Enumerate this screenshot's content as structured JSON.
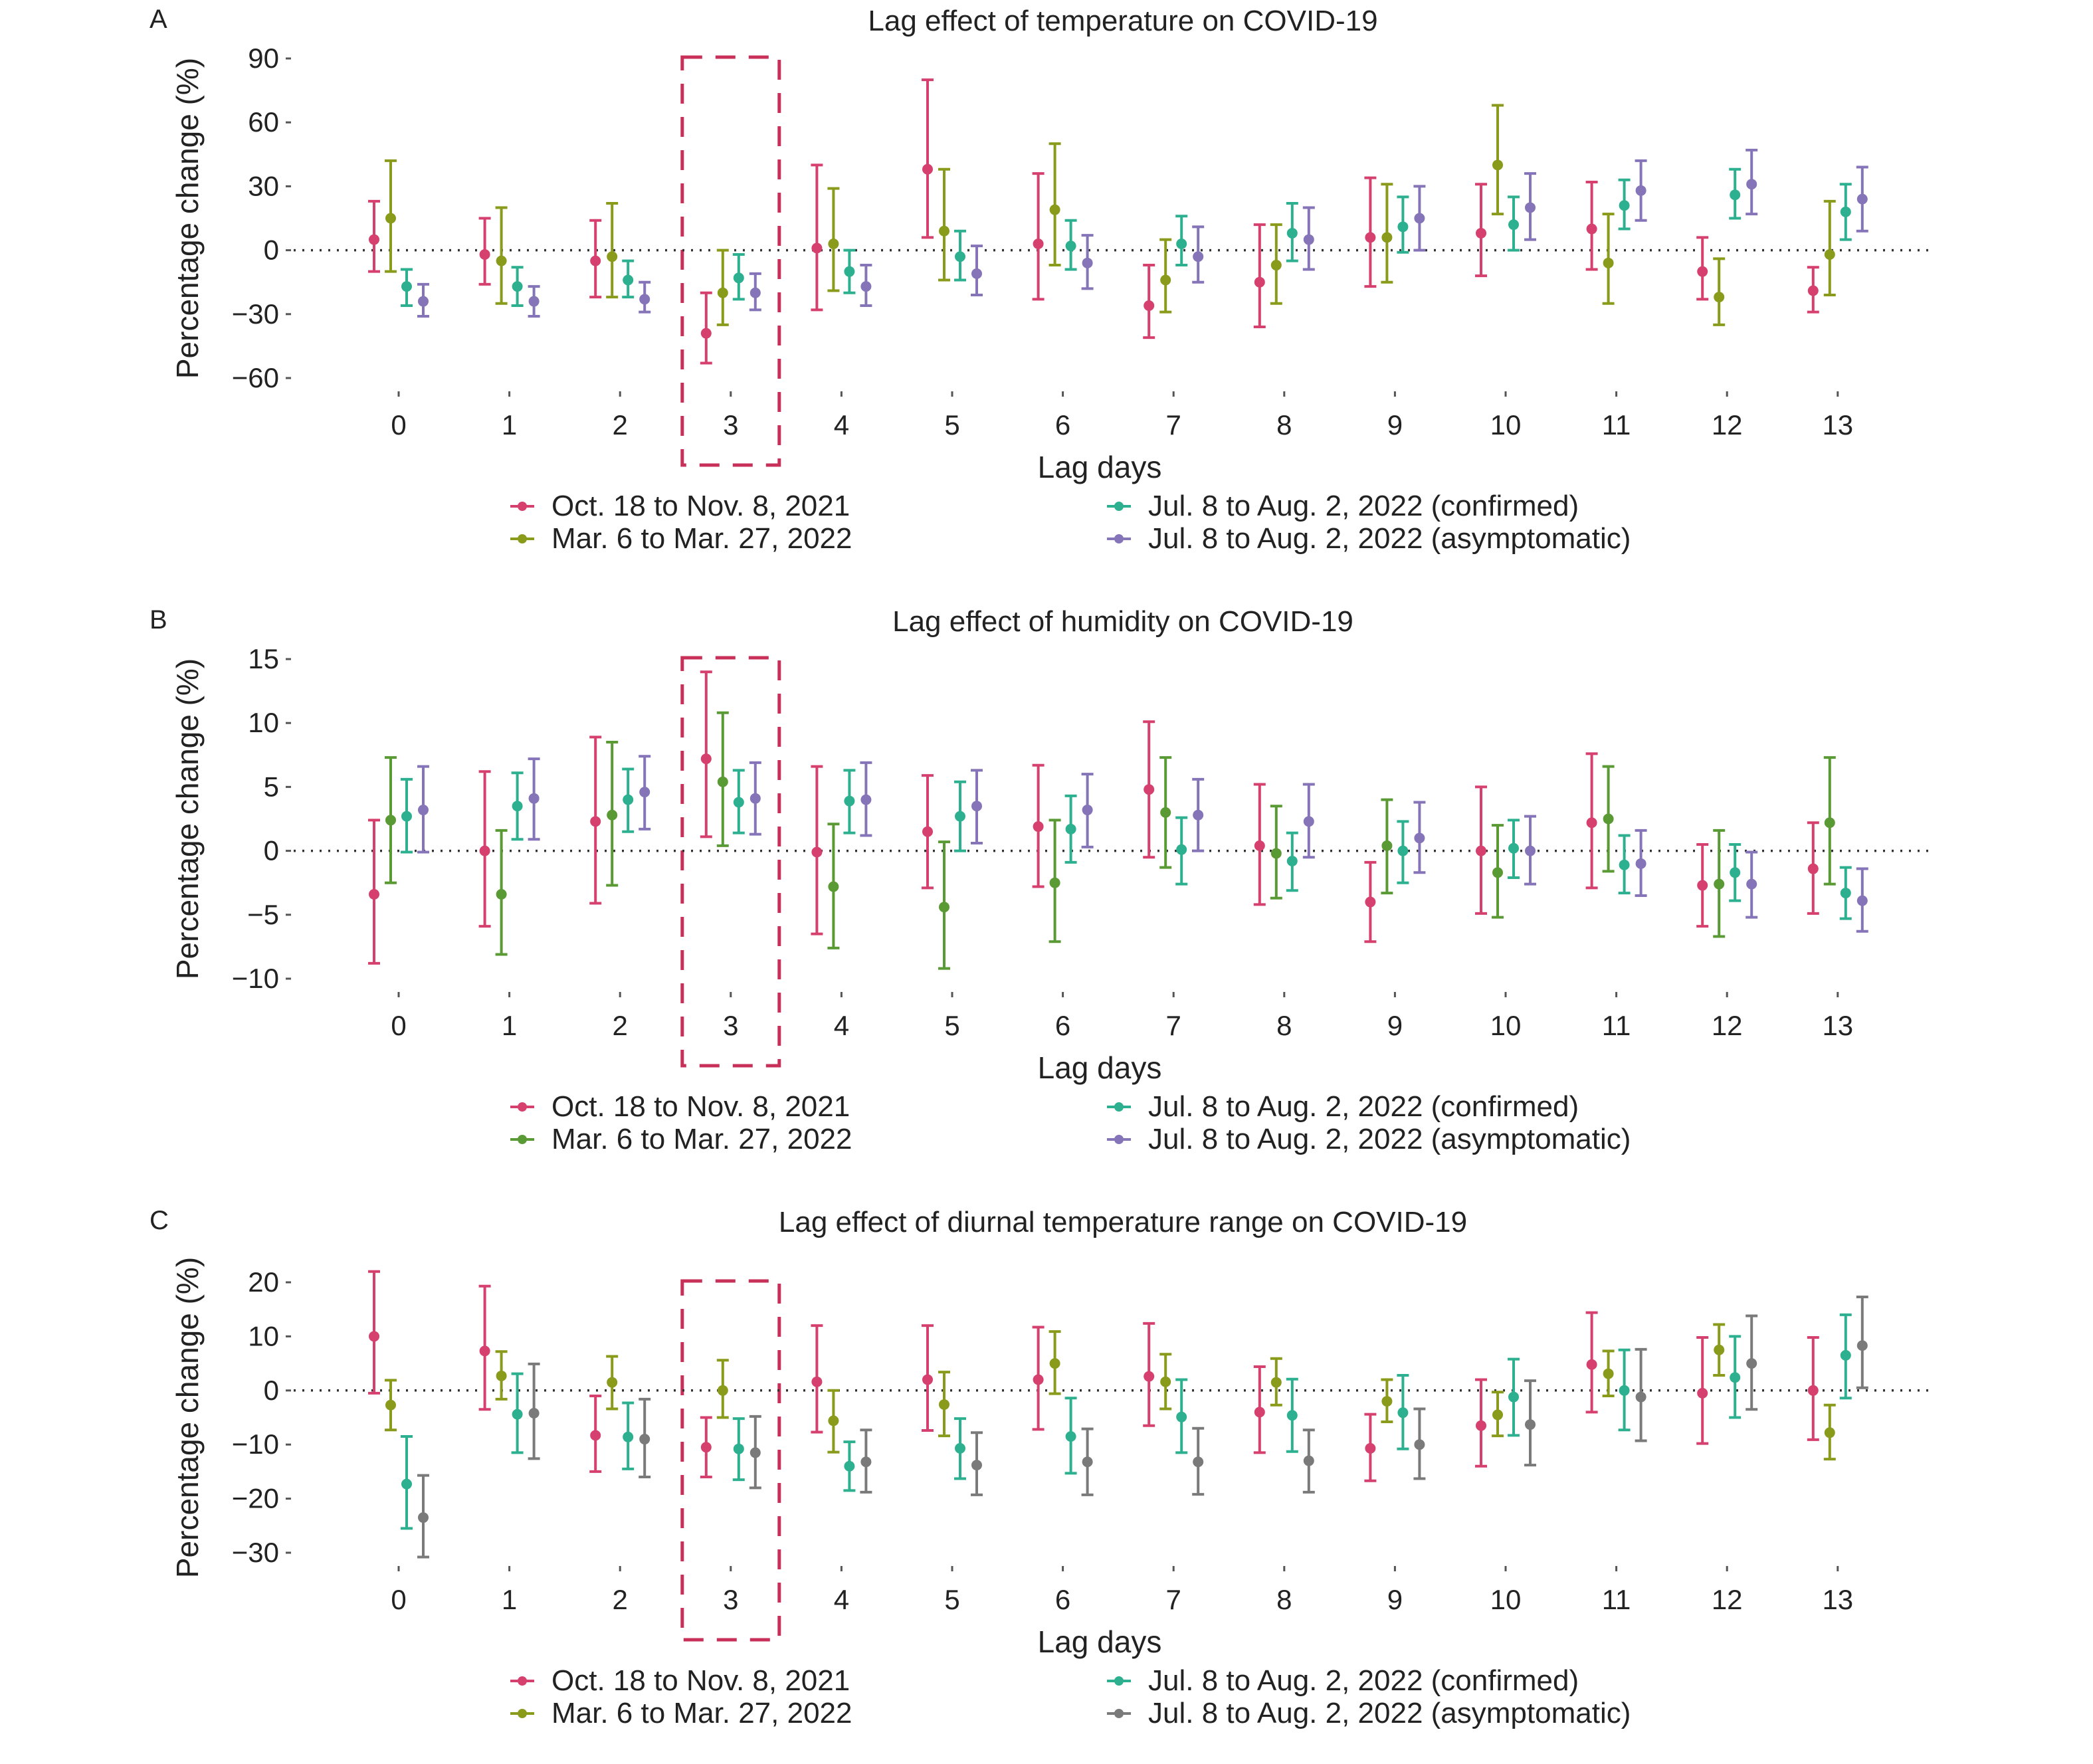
{
  "chart_data": [
    {
      "type": "errorbar",
      "panel": "A",
      "title": "Lag effect of temperature on COVID-19",
      "xlabel": "Lag days",
      "ylabel": "Percentage change (%)",
      "categories": [
        "0",
        "1",
        "2",
        "3",
        "4",
        "5",
        "6",
        "7",
        "8",
        "9",
        "10",
        "11",
        "12",
        "13"
      ],
      "yticks": [
        90,
        60,
        30,
        0,
        -30,
        -60
      ],
      "ylim": [
        -60,
        90
      ],
      "highlight_category": "3",
      "legend_position": "bottom",
      "series": [
        {
          "name": "Oct. 18 to Nov. 8, 2021",
          "color": "#d6406e",
          "values": [
            5,
            -2,
            -5,
            -39,
            1,
            38,
            3,
            -26,
            -15,
            6,
            8,
            10,
            -10,
            -19
          ],
          "lower": [
            -10,
            -16,
            -22,
            -53,
            -28,
            6,
            -23,
            -41,
            -36,
            -17,
            -12,
            -9,
            -23,
            -29
          ],
          "upper": [
            23,
            15,
            14,
            -20,
            40,
            80,
            36,
            -7,
            12,
            34,
            31,
            32,
            6,
            -8
          ]
        },
        {
          "name": "Mar. 6 to Mar. 27, 2022",
          "color": "#8a9a1a",
          "values": [
            15,
            -5,
            -3,
            -20,
            3,
            9,
            19,
            -14,
            -7,
            6,
            40,
            -6,
            -22,
            -2
          ],
          "lower": [
            -10,
            -25,
            -22,
            -35,
            -19,
            -14,
            -7,
            -29,
            -25,
            -15,
            17,
            -25,
            -35,
            -21
          ],
          "upper": [
            42,
            20,
            22,
            0,
            29,
            38,
            50,
            5,
            12,
            31,
            68,
            17,
            -4,
            23
          ]
        },
        {
          "name": "Jul. 8 to Aug. 2, 2022 (confirmed)",
          "color": "#2db08f",
          "values": [
            -17,
            -17,
            -14,
            -13,
            -10,
            -3,
            2,
            3,
            8,
            11,
            12,
            21,
            26,
            18
          ],
          "lower": [
            -26,
            -26,
            -22,
            -23,
            -20,
            -14,
            -9,
            -7,
            -5,
            -1,
            0,
            10,
            15,
            5
          ],
          "upper": [
            -9,
            -8,
            -5,
            -2,
            0,
            9,
            14,
            16,
            22,
            25,
            25,
            33,
            38,
            31
          ]
        },
        {
          "name": "Jul. 8 to Aug. 2, 2022 (asymptomatic)",
          "color": "#8574b8",
          "values": [
            -24,
            -24,
            -23,
            -20,
            -17,
            -11,
            -6,
            -3,
            5,
            15,
            20,
            28,
            31,
            24
          ],
          "lower": [
            -31,
            -31,
            -29,
            -28,
            -26,
            -21,
            -18,
            -15,
            -9,
            0,
            5,
            14,
            17,
            9
          ],
          "upper": [
            -16,
            -17,
            -15,
            -11,
            -7,
            2,
            7,
            11,
            20,
            30,
            36,
            42,
            47,
            39
          ]
        }
      ]
    },
    {
      "type": "errorbar",
      "panel": "B",
      "title": "Lag effect of humidity on COVID-19",
      "xlabel": "Lag days",
      "ylabel": "Percentage change (%)",
      "categories": [
        "0",
        "1",
        "2",
        "3",
        "4",
        "5",
        "6",
        "7",
        "8",
        "9",
        "10",
        "11",
        "12",
        "13"
      ],
      "yticks": [
        15,
        10,
        5,
        0,
        -5,
        -10
      ],
      "ylim": [
        -10,
        15
      ],
      "highlight_category": "3",
      "legend_position": "bottom",
      "series": [
        {
          "name": "Oct. 18 to Nov. 8, 2021",
          "color": "#d6406e",
          "values": [
            -3.4,
            0,
            2.3,
            7.2,
            -0.1,
            1.5,
            1.9,
            4.8,
            0.4,
            -4,
            0,
            2.2,
            -2.7,
            -1.4
          ],
          "lower": [
            -8.8,
            -5.9,
            -4.1,
            1.1,
            -6.5,
            -2.9,
            -2.8,
            -0.5,
            -4.2,
            -7.1,
            -4.9,
            -2.9,
            -5.9,
            -4.9
          ],
          "upper": [
            2.4,
            6.2,
            8.9,
            14,
            6.6,
            5.9,
            6.7,
            10.1,
            5.2,
            -0.9,
            5,
            7.6,
            0.5,
            2.2
          ]
        },
        {
          "name": "Mar. 6 to Mar. 27, 2022",
          "color": "#5a9a34",
          "values": [
            2.4,
            -3.4,
            2.8,
            5.4,
            -2.8,
            -4.4,
            -2.5,
            3,
            -0.2,
            0.4,
            -1.7,
            2.5,
            -2.6,
            2.2
          ],
          "lower": [
            -2.5,
            -8.1,
            -2.7,
            0.4,
            -7.6,
            -9.2,
            -7.1,
            -1.3,
            -3.7,
            -3.3,
            -5.2,
            -1.6,
            -6.7,
            -2.6
          ],
          "upper": [
            7.3,
            1.6,
            8.5,
            10.8,
            2.1,
            0.7,
            2.4,
            7.3,
            3.5,
            4,
            2,
            6.6,
            1.6,
            7.3
          ]
        },
        {
          "name": "Jul. 8 to Aug. 2, 2022 (confirmed)",
          "color": "#2db08f",
          "values": [
            2.7,
            3.5,
            4,
            3.8,
            3.9,
            2.7,
            1.7,
            0.1,
            -0.8,
            0,
            0.2,
            -1.1,
            -1.7,
            -3.3
          ],
          "lower": [
            -0.1,
            0.9,
            1.5,
            1.4,
            1.4,
            0,
            -0.9,
            -2.6,
            -3.1,
            -2.5,
            -2.1,
            -3.3,
            -3.9,
            -5.3
          ],
          "upper": [
            5.6,
            6.1,
            6.4,
            6.3,
            6.3,
            5.4,
            4.3,
            2.6,
            1.4,
            2.3,
            2.4,
            1.2,
            0.5,
            -1.3
          ]
        },
        {
          "name": "Jul. 8 to Aug. 2, 2022 (asymptomatic)",
          "color": "#8574b8",
          "values": [
            3.2,
            4.1,
            4.6,
            4.1,
            4,
            3.5,
            3.2,
            2.8,
            2.3,
            1,
            0,
            -1,
            -2.6,
            -3.9
          ],
          "lower": [
            -0.1,
            0.9,
            1.7,
            1.3,
            1.2,
            0.6,
            0.3,
            0,
            -0.5,
            -1.7,
            -2.6,
            -3.5,
            -5.2,
            -6.3
          ],
          "upper": [
            6.6,
            7.2,
            7.4,
            6.9,
            6.9,
            6.3,
            6,
            5.6,
            5.2,
            3.8,
            2.7,
            1.6,
            -0.1,
            -1.4
          ]
        }
      ]
    },
    {
      "type": "errorbar",
      "panel": "C",
      "title": "Lag effect of diurnal temperature range on COVID-19",
      "xlabel": "Lag days",
      "ylabel": "Percentage change (%)",
      "categories": [
        "0",
        "1",
        "2",
        "3",
        "4",
        "5",
        "6",
        "7",
        "8",
        "9",
        "10",
        "11",
        "12",
        "13"
      ],
      "yticks": [
        20,
        10,
        0,
        -10,
        -20,
        -30
      ],
      "ylim": [
        -30,
        20
      ],
      "highlight_category": "3",
      "legend_position": "bottom",
      "series": [
        {
          "name": "Oct. 18 to Nov. 8, 2021",
          "color": "#d6406e",
          "values": [
            10,
            7.3,
            -8.3,
            -10.5,
            1.6,
            2,
            2,
            2.6,
            -4,
            -10.7,
            -6.5,
            4.8,
            -0.5,
            0
          ],
          "lower": [
            -0.5,
            -3.5,
            -15,
            -16,
            -7.7,
            -7.4,
            -7.2,
            -6.5,
            -11.5,
            -16.7,
            -14,
            -4,
            -9.8,
            -9.1
          ],
          "upper": [
            22,
            19.3,
            -1,
            -5,
            12,
            12,
            11.7,
            12.4,
            4.4,
            -4.4,
            2,
            14.4,
            9.8,
            9.8
          ]
        },
        {
          "name": "Mar. 6 to Mar. 27, 2022",
          "color": "#8a9a1a",
          "values": [
            -2.7,
            2.7,
            1.5,
            0,
            -5.6,
            -2.6,
            5,
            1.6,
            1.5,
            -2,
            -4.5,
            3.1,
            7.5,
            -7.8
          ],
          "lower": [
            -7.3,
            -1.6,
            -3.4,
            -5,
            -11.4,
            -8.4,
            -0.6,
            -3.4,
            -2.7,
            -5.8,
            -8.4,
            -1,
            2.8,
            -12.7
          ],
          "upper": [
            1.9,
            7.2,
            6.3,
            5.6,
            0,
            3.4,
            10.9,
            6.7,
            5.9,
            2,
            -0.3,
            7.3,
            12.2,
            -2.7
          ]
        },
        {
          "name": "Jul. 8 to Aug. 2, 2022 (confirmed)",
          "color": "#2db08f",
          "values": [
            -17.3,
            -4.4,
            -8.6,
            -10.8,
            -14,
            -10.7,
            -8.5,
            -4.9,
            -4.6,
            -4.1,
            -1.2,
            0,
            2.4,
            6.5
          ],
          "lower": [
            -25.5,
            -11.5,
            -14.5,
            -16.5,
            -18.5,
            -16.3,
            -15.3,
            -11.5,
            -11.3,
            -10.8,
            -8.3,
            -7.3,
            -5,
            -1.4
          ],
          "upper": [
            -8.5,
            3.1,
            -2.3,
            -5.2,
            -9.5,
            -5.2,
            -1.4,
            2,
            2.1,
            2.8,
            5.8,
            7.5,
            10,
            14
          ]
        },
        {
          "name": "Jul. 8 to Aug. 2, 2022 (asymptomatic)",
          "color": "#7a7a7a",
          "values": [
            -23.5,
            -4.2,
            -9,
            -11.5,
            -13.2,
            -13.8,
            -13.2,
            -13.2,
            -13,
            -10,
            -6.3,
            -1.2,
            5,
            8.3
          ],
          "lower": [
            -30.8,
            -12.6,
            -16,
            -18,
            -18.8,
            -19.3,
            -19.3,
            -19.2,
            -18.8,
            -16.3,
            -13.8,
            -9.3,
            -3.5,
            0.5
          ],
          "upper": [
            -15.7,
            4.9,
            -1.6,
            -4.8,
            -7.3,
            -7.8,
            -7.1,
            -7,
            -7.3,
            -3.4,
            1.8,
            7.6,
            13.8,
            17.3
          ]
        }
      ]
    }
  ]
}
